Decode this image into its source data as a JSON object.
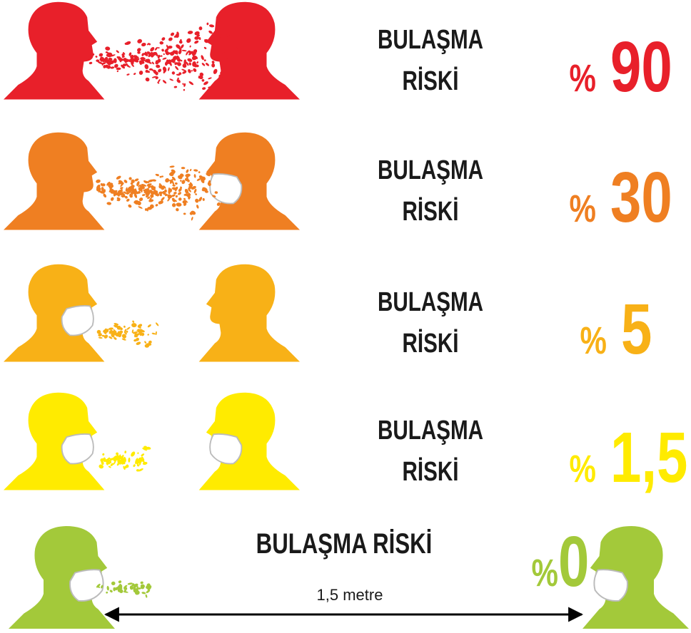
{
  "rows": [
    {
      "line1": "BULAŞMA",
      "line2": "RİSKİ",
      "percent": "%",
      "value": "90",
      "color": "#e8202a"
    },
    {
      "line1": "BULAŞMA",
      "line2": "RİSKİ",
      "percent": "%",
      "value": "30",
      "color": "#ef7f22"
    },
    {
      "line1": "BULAŞMA",
      "line2": "RİSKİ",
      "percent": "%",
      "value": "5",
      "color": "#f8b117"
    },
    {
      "line1": "BULAŞMA",
      "line2": "RİSKİ",
      "percent": "%",
      "value": "1,5",
      "color": "#ffeb00"
    }
  ],
  "last_row": {
    "label": "BULAŞMA RİSKİ",
    "percent": "%",
    "value": "0",
    "distance": "1,5 metre",
    "color": "#a3c93a"
  }
}
